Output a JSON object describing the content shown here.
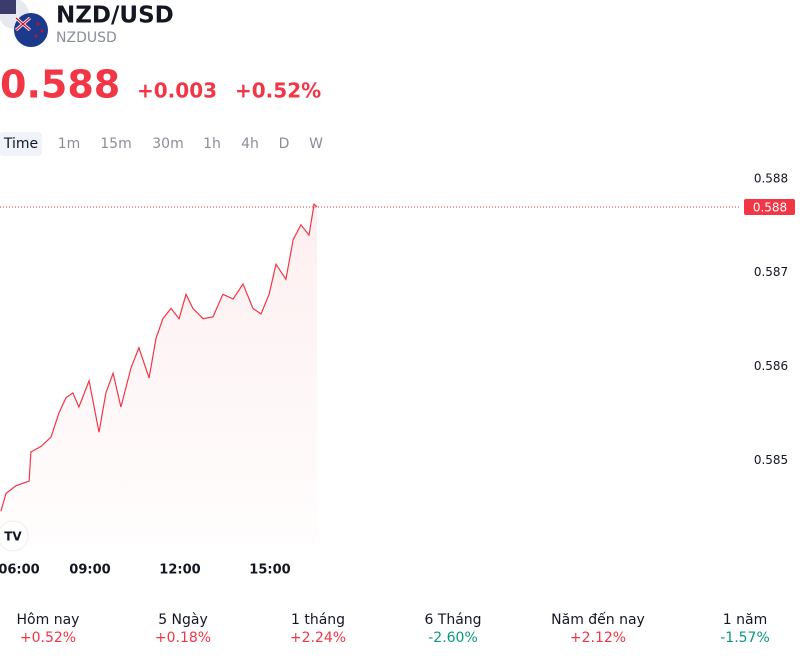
{
  "header": {
    "title": "NZD/USD",
    "symbol": "NZDUSD",
    "price": "0.588",
    "change": "+0.003",
    "change_percent": "+0.52%"
  },
  "timeframes": [
    "Time",
    "1m",
    "15m",
    "30m",
    "1h",
    "4h",
    "D",
    "W"
  ],
  "chart_data": {
    "type": "line",
    "color": "#f23645",
    "x": [
      6.03,
      6.2,
      6.53,
      6.97,
      7.03,
      7.37,
      7.7,
      7.97,
      8.2,
      8.43,
      8.63,
      8.97,
      9.3,
      9.53,
      9.77,
      10.03,
      10.37,
      10.63,
      10.97,
      11.2,
      11.43,
      11.7,
      11.97,
      12.2,
      12.43,
      12.77,
      13.1,
      13.43,
      13.77,
      14.1,
      14.43,
      14.7,
      14.97,
      15.2,
      15.53,
      15.77,
      16.03,
      16.3,
      16.47,
      16.57
    ],
    "values": [
      0.58446,
      0.58465,
      0.58473,
      0.58478,
      0.58509,
      0.58515,
      0.58525,
      0.58551,
      0.58567,
      0.58572,
      0.58557,
      0.58585,
      0.5853,
      0.58572,
      0.58593,
      0.58557,
      0.58599,
      0.5862,
      0.58588,
      0.5863,
      0.58651,
      0.58662,
      0.58651,
      0.58677,
      0.58662,
      0.58651,
      0.58653,
      0.58677,
      0.58672,
      0.58688,
      0.58662,
      0.58656,
      0.58677,
      0.58709,
      0.58693,
      0.58735,
      0.58751,
      0.5874,
      0.58773,
      0.5877
    ],
    "xlim": [
      6,
      30.7
    ],
    "xticks": [
      {
        "value": 6,
        "label": "06:00"
      },
      {
        "value": 9,
        "label": "09:00"
      },
      {
        "value": 12,
        "label": "12:00"
      },
      {
        "value": 15,
        "label": "15:00"
      }
    ],
    "ylim": [
      0.5841,
      0.5882
    ],
    "yticks": [
      0.585,
      0.586,
      0.587,
      0.588
    ],
    "last_price": {
      "value": 0.5877,
      "label": "0.588"
    }
  },
  "performance": [
    {
      "period": "Hôm nay",
      "value": "+0.52%",
      "direction": "up"
    },
    {
      "period": "5 Ngày",
      "value": "+0.18%",
      "direction": "up"
    },
    {
      "period": "1 tháng",
      "value": "+2.24%",
      "direction": "up"
    },
    {
      "period": "6 Tháng",
      "value": "-2.60%",
      "direction": "down"
    },
    {
      "period": "Năm đến nay",
      "value": "+2.12%",
      "direction": "up"
    },
    {
      "period": "1 năm",
      "value": "-1.57%",
      "direction": "down"
    }
  ]
}
